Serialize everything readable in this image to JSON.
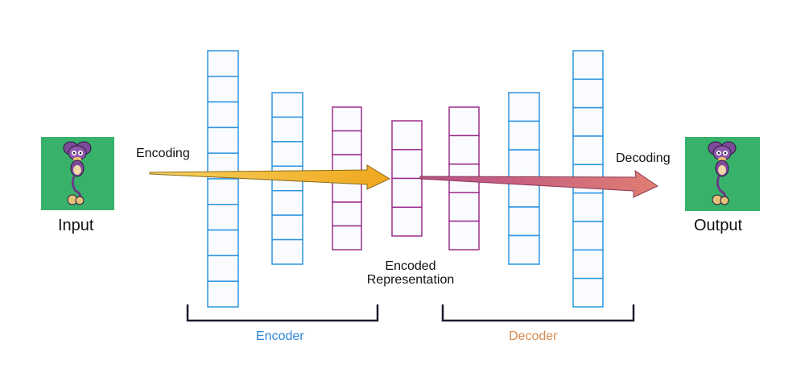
{
  "labels": {
    "input": "Input",
    "output": "Output",
    "encoding": "Encoding",
    "decoding": "Decoding",
    "encoded_line1": "Encoded",
    "encoded_line2": "Representation",
    "encoder": "Encoder",
    "decoder": "Decoder"
  },
  "colors": {
    "encoder_layer": "#2d95e0",
    "latent_layer": "#9b2e8c",
    "image_bg": "#38b26b",
    "encoding_arrow": "#f2b52a",
    "decoding_arrow": "#d9707b",
    "encoder_label": "#2d86d6",
    "decoder_label": "#d98b4e",
    "bracket": "#1a1a2e",
    "cell_fill": "#fafbff"
  },
  "layers": [
    {
      "role": "encoder",
      "cells": 10
    },
    {
      "role": "encoder",
      "cells": 7
    },
    {
      "role": "latent",
      "cells": 6
    },
    {
      "role": "latent",
      "cells": 4
    },
    {
      "role": "latent",
      "cells": 5
    },
    {
      "role": "encoder",
      "cells": 6
    },
    {
      "role": "encoder",
      "cells": 9
    }
  ],
  "images": [
    {
      "name": "input-image",
      "icon": "creature-sprite"
    },
    {
      "name": "output-image",
      "icon": "creature-sprite"
    }
  ]
}
